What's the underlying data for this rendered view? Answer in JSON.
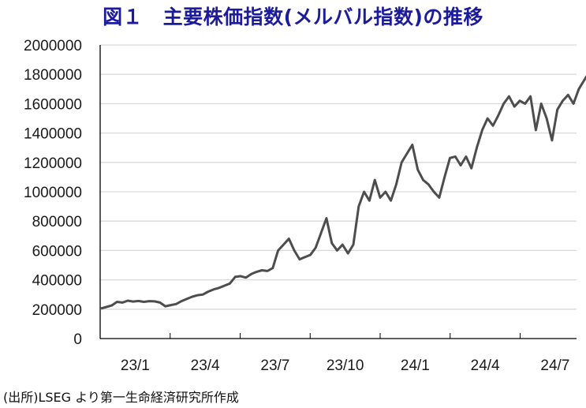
{
  "figure": {
    "title": "図１　主要株価指数(メルバル指数)の推移",
    "source": "(出所)LSEG より第一生命経済研究所作成",
    "line_color": "#4d4d4d",
    "title_color": "#1b1b9c",
    "grid_color": "#d9d9d9"
  },
  "chart_data": {
    "type": "line",
    "title": "図１　主要株価指数(メルバル指数)の推移",
    "xlabel": "",
    "ylabel": "",
    "ylim": [
      0,
      2000000
    ],
    "yticks": [
      0,
      200000,
      400000,
      600000,
      800000,
      1000000,
      1200000,
      1400000,
      1600000,
      1800000,
      2000000
    ],
    "ytick_labels": [
      "0",
      "200000",
      "400000",
      "600000",
      "800000",
      "1000000",
      "1200000",
      "1400000",
      "1600000",
      "1800000",
      "2000000"
    ],
    "xtick_labels": [
      "23/1",
      "23/4",
      "23/7",
      "23/10",
      "24/1",
      "24/4",
      "24/7"
    ],
    "grid": "horizontal",
    "legend": "none",
    "series": [
      {
        "name": "メルバル指数",
        "points": [
          [
            "2023-01-02",
            205000
          ],
          [
            "2023-01-09",
            215000
          ],
          [
            "2023-01-16",
            225000
          ],
          [
            "2023-01-23",
            250000
          ],
          [
            "2023-01-30",
            245000
          ],
          [
            "2023-02-06",
            258000
          ],
          [
            "2023-02-13",
            252000
          ],
          [
            "2023-02-20",
            256000
          ],
          [
            "2023-02-27",
            250000
          ],
          [
            "2023-03-06",
            255000
          ],
          [
            "2023-03-13",
            253000
          ],
          [
            "2023-03-20",
            245000
          ],
          [
            "2023-03-27",
            220000
          ],
          [
            "2023-04-03",
            228000
          ],
          [
            "2023-04-10",
            235000
          ],
          [
            "2023-04-17",
            255000
          ],
          [
            "2023-04-24",
            270000
          ],
          [
            "2023-05-01",
            285000
          ],
          [
            "2023-05-08",
            295000
          ],
          [
            "2023-05-15",
            300000
          ],
          [
            "2023-05-22",
            320000
          ],
          [
            "2023-05-29",
            335000
          ],
          [
            "2023-06-05",
            345000
          ],
          [
            "2023-06-12",
            360000
          ],
          [
            "2023-06-19",
            375000
          ],
          [
            "2023-06-26",
            420000
          ],
          [
            "2023-07-03",
            425000
          ],
          [
            "2023-07-10",
            415000
          ],
          [
            "2023-07-17",
            440000
          ],
          [
            "2023-07-24",
            455000
          ],
          [
            "2023-07-31",
            465000
          ],
          [
            "2023-08-07",
            460000
          ],
          [
            "2023-08-14",
            480000
          ],
          [
            "2023-08-21",
            600000
          ],
          [
            "2023-08-28",
            640000
          ],
          [
            "2023-09-04",
            680000
          ],
          [
            "2023-09-11",
            600000
          ],
          [
            "2023-09-18",
            540000
          ],
          [
            "2023-09-25",
            555000
          ],
          [
            "2023-10-02",
            570000
          ],
          [
            "2023-10-09",
            620000
          ],
          [
            "2023-10-16",
            720000
          ],
          [
            "2023-10-23",
            820000
          ],
          [
            "2023-10-30",
            650000
          ],
          [
            "2023-11-06",
            600000
          ],
          [
            "2023-11-13",
            640000
          ],
          [
            "2023-11-20",
            580000
          ],
          [
            "2023-11-27",
            640000
          ],
          [
            "2023-12-04",
            900000
          ],
          [
            "2023-12-11",
            1000000
          ],
          [
            "2023-12-18",
            940000
          ],
          [
            "2023-12-25",
            1080000
          ],
          [
            "2024-01-01",
            960000
          ],
          [
            "2024-01-08",
            1000000
          ],
          [
            "2024-01-15",
            940000
          ],
          [
            "2024-01-22",
            1050000
          ],
          [
            "2024-01-29",
            1200000
          ],
          [
            "2024-02-05",
            1260000
          ],
          [
            "2024-02-12",
            1320000
          ],
          [
            "2024-02-19",
            1150000
          ],
          [
            "2024-02-26",
            1080000
          ],
          [
            "2024-03-04",
            1050000
          ],
          [
            "2024-03-11",
            1000000
          ],
          [
            "2024-03-18",
            960000
          ],
          [
            "2024-03-25",
            1100000
          ],
          [
            "2024-04-01",
            1230000
          ],
          [
            "2024-04-08",
            1240000
          ],
          [
            "2024-04-15",
            1180000
          ],
          [
            "2024-04-22",
            1240000
          ],
          [
            "2024-04-29",
            1160000
          ],
          [
            "2024-05-06",
            1300000
          ],
          [
            "2024-05-13",
            1420000
          ],
          [
            "2024-05-20",
            1500000
          ],
          [
            "2024-05-27",
            1450000
          ],
          [
            "2024-06-03",
            1520000
          ],
          [
            "2024-06-10",
            1600000
          ],
          [
            "2024-06-17",
            1650000
          ],
          [
            "2024-06-24",
            1580000
          ],
          [
            "2024-07-01",
            1620000
          ],
          [
            "2024-07-08",
            1600000
          ],
          [
            "2024-07-15",
            1650000
          ],
          [
            "2024-07-22",
            1420000
          ],
          [
            "2024-07-29",
            1600000
          ],
          [
            "2024-08-05",
            1500000
          ],
          [
            "2024-08-12",
            1350000
          ],
          [
            "2024-08-19",
            1560000
          ],
          [
            "2024-08-26",
            1620000
          ],
          [
            "2024-09-02",
            1660000
          ],
          [
            "2024-09-09",
            1600000
          ],
          [
            "2024-09-16",
            1700000
          ],
          [
            "2024-09-23",
            1760000
          ],
          [
            "2024-09-30",
            1820000
          ],
          [
            "2024-10-07",
            1700000
          ]
        ]
      }
    ]
  }
}
